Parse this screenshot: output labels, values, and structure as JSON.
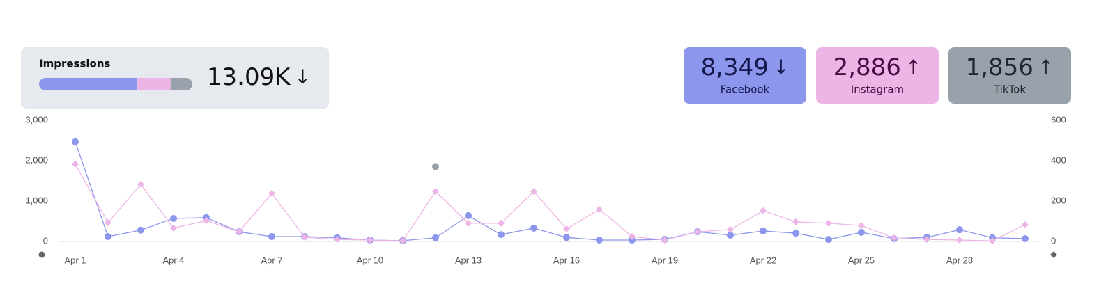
{
  "summary": {
    "title": "Impressions",
    "total_label": "13.09K",
    "trend": "↓"
  },
  "cards": [
    {
      "label": "Facebook",
      "value": 8349,
      "value_label": "8,349",
      "trend": "↓",
      "color": "#8c96ec",
      "text_color": "#16184f"
    },
    {
      "label": "Instagram",
      "value": 2886,
      "value_label": "2,886",
      "trend": "↑",
      "color": "#ecb5e6",
      "text_color": "#4a0b42"
    },
    {
      "label": "TikTok",
      "value": 1856,
      "value_label": "1,856",
      "trend": "↑",
      "color": "#99a2aa",
      "text_color": "#1e2830"
    }
  ],
  "chart_data": {
    "type": "line",
    "categories": [
      "Apr 1",
      null,
      null,
      "Apr 4",
      null,
      null,
      "Apr 7",
      null,
      null,
      "Apr 10",
      null,
      null,
      "Apr 13",
      null,
      null,
      "Apr 16",
      null,
      null,
      "Apr 19",
      null,
      null,
      "Apr 22",
      null,
      null,
      "Apr 25",
      null,
      null,
      "Apr 28",
      null,
      null
    ],
    "series": [
      {
        "name": "Facebook",
        "color": "#8c96ec",
        "marker": "circle",
        "values": [
          2470,
          120,
          280,
          570,
          590,
          240,
          120,
          120,
          90,
          35,
          20,
          90,
          640,
          170,
          330,
          100,
          35,
          35,
          50,
          240,
          155,
          260,
          205,
          50,
          225,
          70,
          100,
          290,
          90,
          70
        ]
      },
      {
        "name": "Instagram",
        "color": "#ecb5e6",
        "marker": "diamond",
        "axis": "y2",
        "values": [
          383,
          93,
          283,
          66,
          103,
          48,
          238,
          21,
          10,
          7,
          3,
          248,
          90,
          90,
          248,
          62,
          159,
          24,
          7,
          48,
          59,
          152,
          97,
          90,
          79,
          17,
          10,
          7,
          3,
          83
        ]
      },
      {
        "name": "TikTok",
        "color": "#96a0a8",
        "marker": "circle",
        "values": [
          null,
          null,
          null,
          null,
          null,
          null,
          null,
          null,
          null,
          null,
          null,
          1856,
          null,
          null,
          null,
          null,
          null,
          null,
          null,
          null,
          null,
          null,
          null,
          null,
          null,
          null,
          null,
          null,
          null,
          null
        ]
      }
    ],
    "ylim": [
      0,
      3000
    ],
    "yticks": [
      0,
      {
        "value": 1000,
        "label": "1,000"
      },
      {
        "value": 2000,
        "label": "2,000"
      },
      {
        "value": 3000,
        "label": "3,000"
      }
    ],
    "y2lim": [
      0,
      600
    ],
    "y2ticks": [
      0,
      200,
      400,
      600
    ]
  }
}
